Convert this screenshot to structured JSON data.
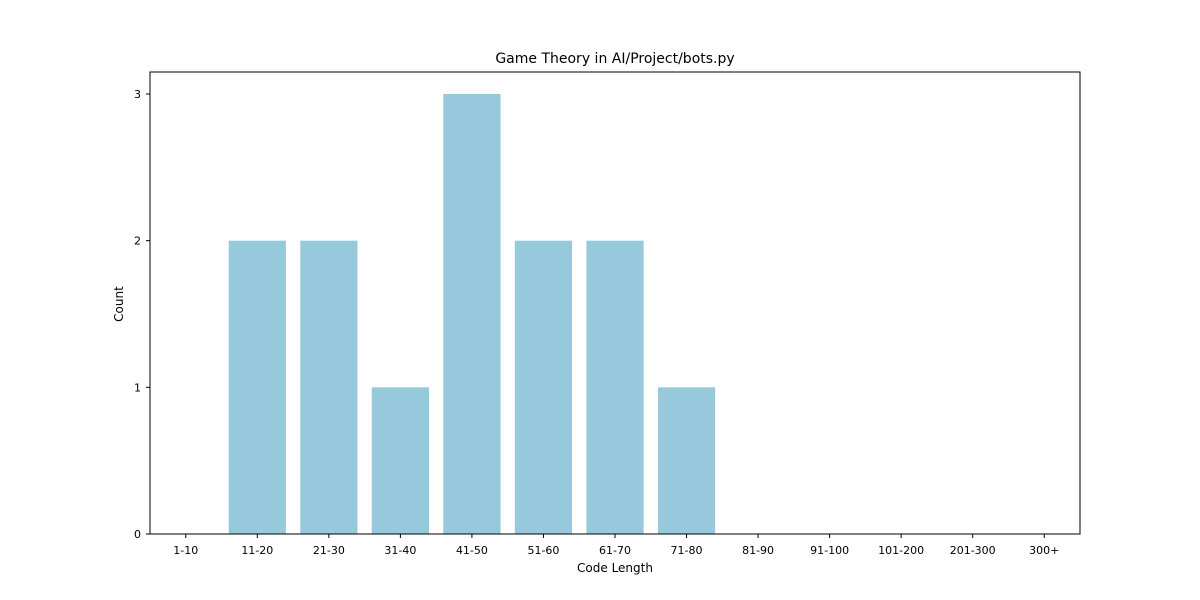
{
  "chart_data": {
    "type": "bar",
    "title": "Game Theory in AI/Project/bots.py",
    "xlabel": "Code Length",
    "ylabel": "Count",
    "categories": [
      "1-10",
      "11-20",
      "21-30",
      "31-40",
      "41-50",
      "51-60",
      "61-70",
      "71-80",
      "81-90",
      "91-100",
      "101-200",
      "201-300",
      "300+"
    ],
    "values": [
      0,
      2,
      2,
      1,
      3,
      2,
      2,
      1,
      0,
      0,
      0,
      0,
      0
    ],
    "ylim": [
      0,
      3.15
    ],
    "yticks": [
      0,
      1,
      2,
      3
    ],
    "grid": false,
    "bar_color": "#96c9dc"
  }
}
